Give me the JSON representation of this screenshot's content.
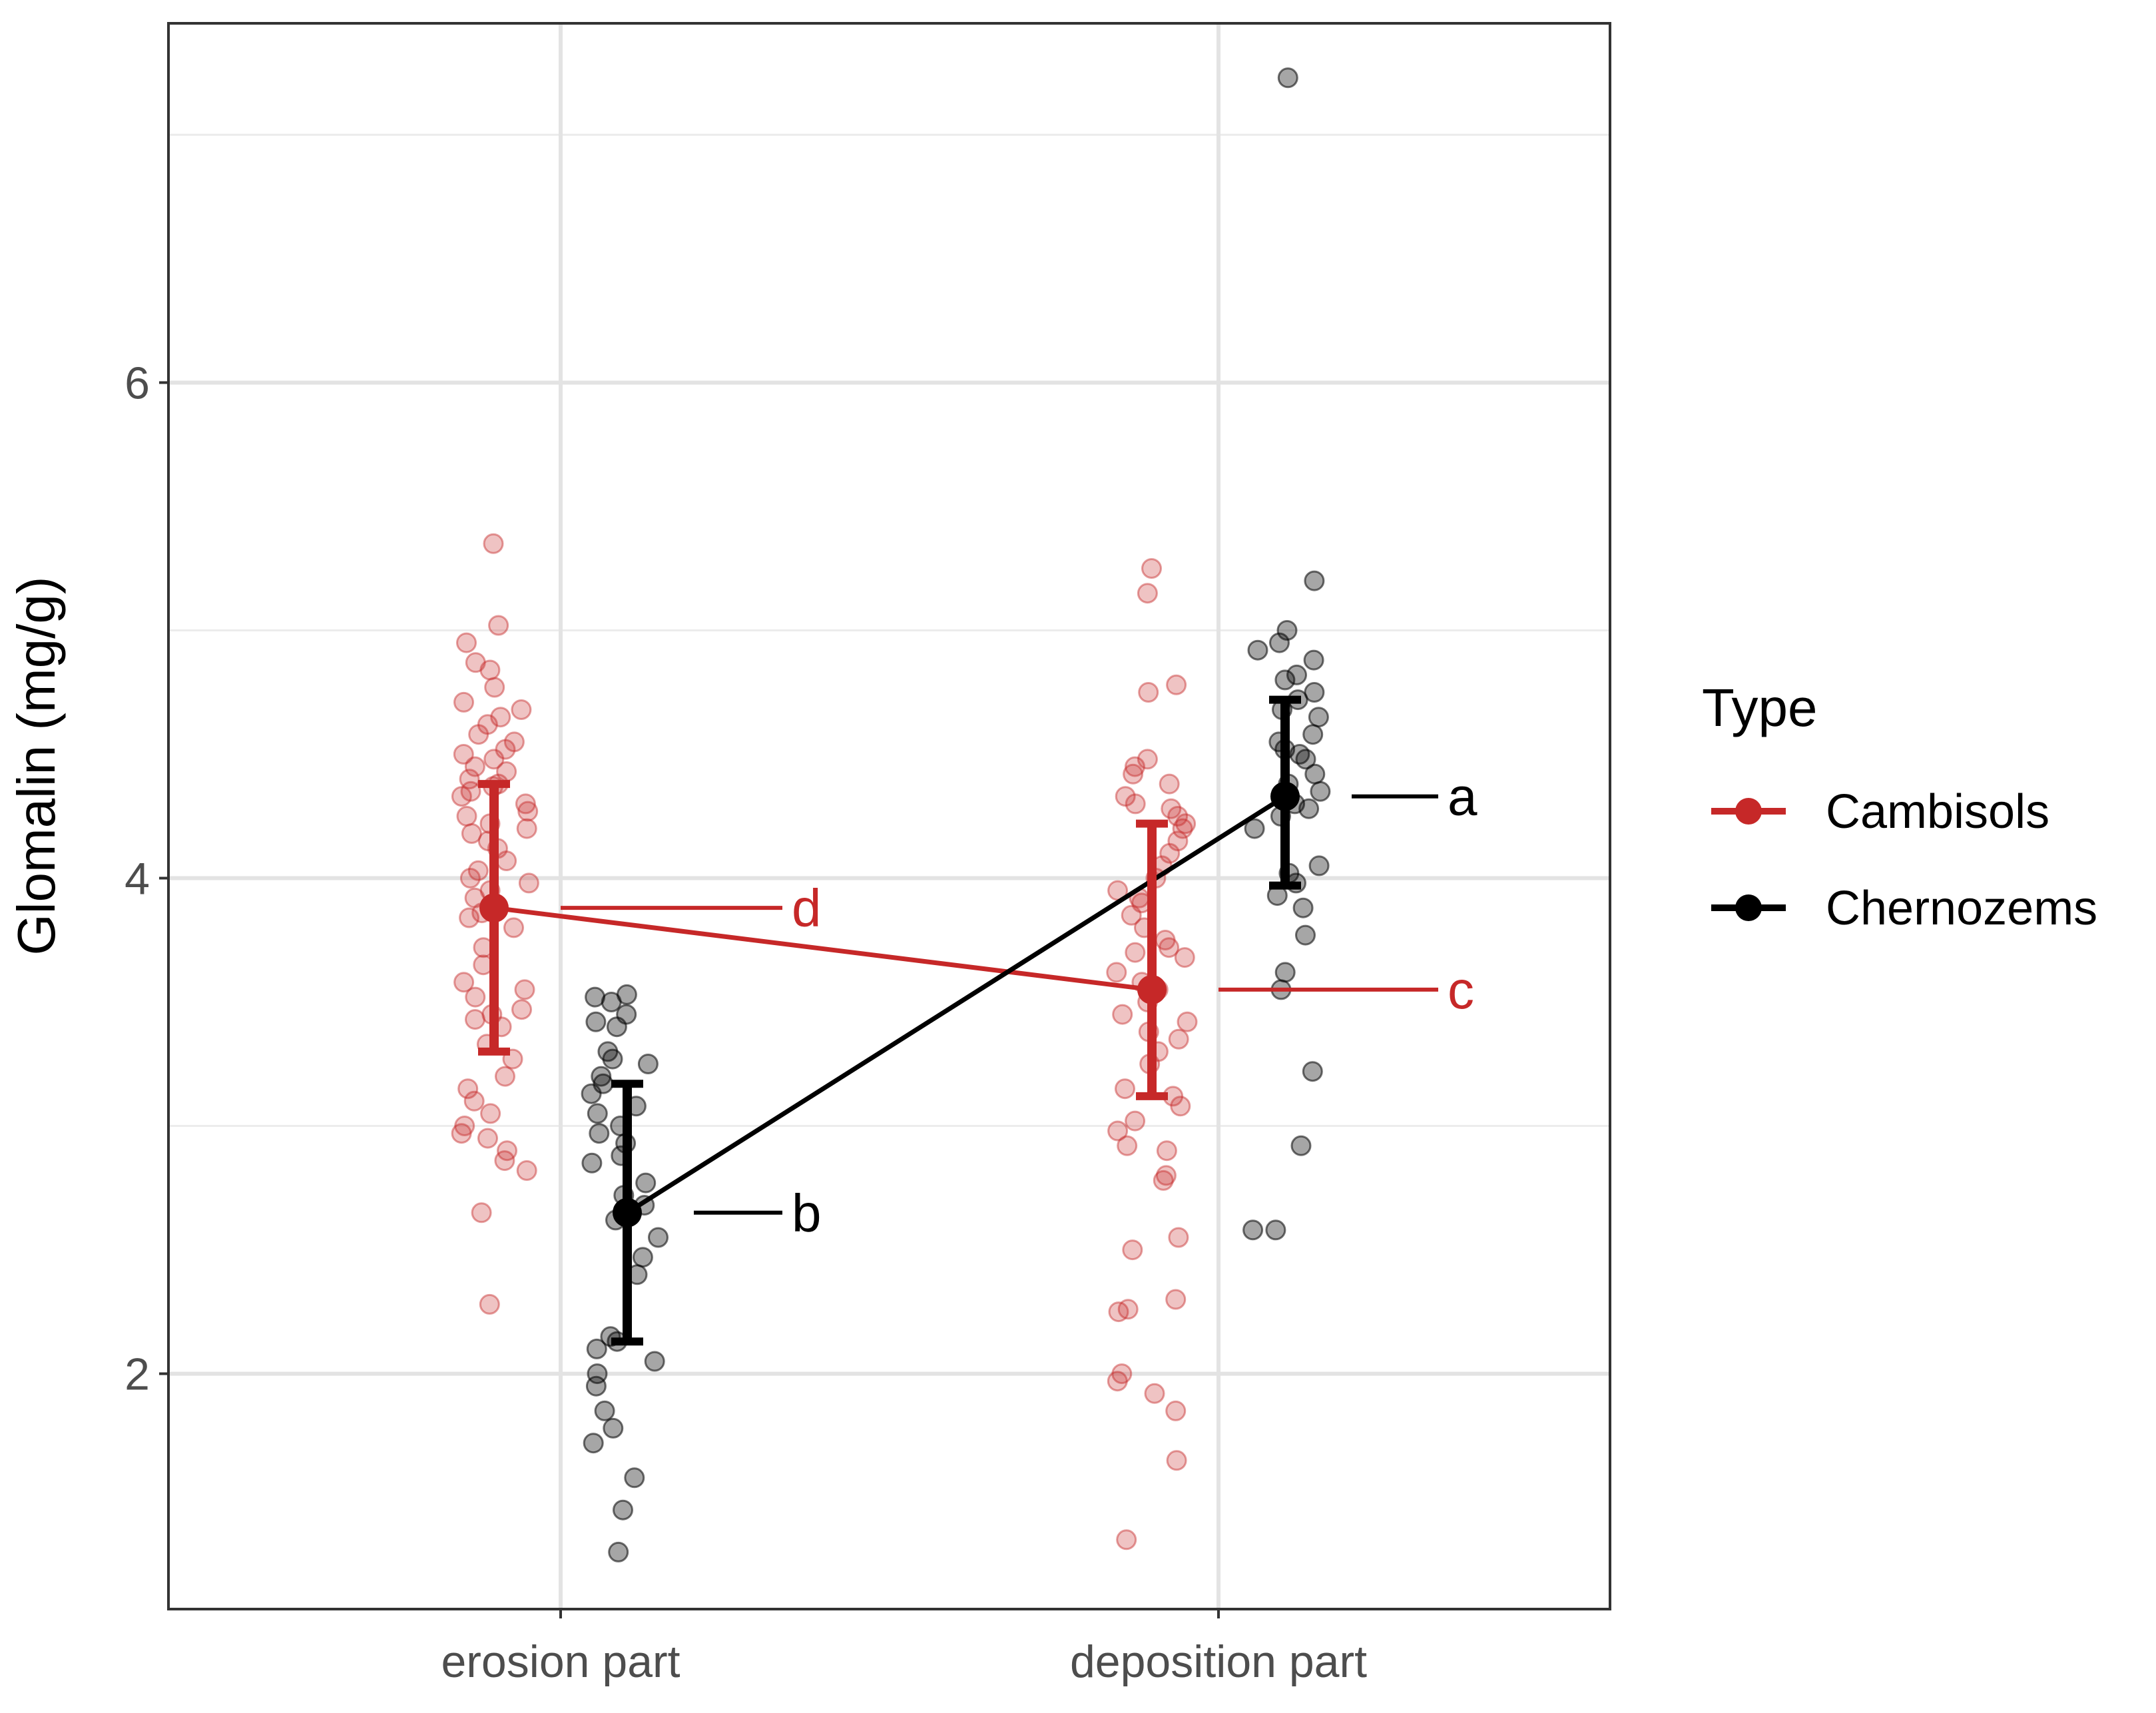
{
  "chart_data": {
    "type": "scatter",
    "title": "",
    "xlabel": "",
    "ylabel": "Glomalin (mg/g)",
    "categories": [
      "erosion part",
      "deposition part"
    ],
    "ylim": [
      1.05,
      7.45
    ],
    "yticks": [
      2,
      4,
      6
    ],
    "grid": true,
    "legend": {
      "title": "Type",
      "position": "right"
    },
    "colors": {
      "Cambisols": "#c62828",
      "Chernozems": "#000000"
    },
    "series": [
      {
        "name": "Cambisols",
        "color": "#c62828",
        "means": [
          3.88,
          3.55
        ],
        "ci_low": [
          3.3,
          3.12
        ],
        "ci_high": [
          4.38,
          4.22
        ],
        "letters": [
          "d",
          "c"
        ],
        "points": {
          "erosion part": [
            5.35,
            5.02,
            4.95,
            4.87,
            4.84,
            4.77,
            4.71,
            4.68,
            4.65,
            4.62,
            4.58,
            4.55,
            4.52,
            4.5,
            4.48,
            4.45,
            4.43,
            4.4,
            4.38,
            4.37,
            4.35,
            4.33,
            4.3,
            4.27,
            4.25,
            4.22,
            4.2,
            4.18,
            4.15,
            4.12,
            4.07,
            4.03,
            4.0,
            3.98,
            3.95,
            3.92,
            3.89,
            3.86,
            3.84,
            3.8,
            3.72,
            3.65,
            3.58,
            3.55,
            3.52,
            3.47,
            3.45,
            3.43,
            3.4,
            3.33,
            3.27,
            3.2,
            3.15,
            3.1,
            3.05,
            3.0,
            2.97,
            2.95,
            2.9,
            2.86,
            2.82,
            2.65,
            2.28
          ],
          "deposition part": [
            5.25,
            5.15,
            4.78,
            4.75,
            4.48,
            4.45,
            4.42,
            4.38,
            4.33,
            4.3,
            4.28,
            4.25,
            4.22,
            4.2,
            4.15,
            4.1,
            4.05,
            4.0,
            3.95,
            3.92,
            3.9,
            3.85,
            3.8,
            3.75,
            3.72,
            3.7,
            3.68,
            3.62,
            3.58,
            3.55,
            3.5,
            3.45,
            3.42,
            3.38,
            3.35,
            3.3,
            3.25,
            3.15,
            3.12,
            3.08,
            3.02,
            2.98,
            2.92,
            2.9,
            2.8,
            2.78,
            2.55,
            2.5,
            2.3,
            2.26,
            2.25,
            2.0,
            1.97,
            1.92,
            1.85,
            1.65,
            1.33
          ]
        }
      },
      {
        "name": "Chernozems",
        "color": "#000000",
        "means": [
          2.65,
          4.33
        ],
        "ci_low": [
          2.13,
          3.97
        ],
        "ci_high": [
          3.17,
          4.72
        ],
        "letters": [
          "b",
          "a"
        ],
        "points": {
          "erosion part": [
            3.53,
            3.52,
            3.5,
            3.45,
            3.42,
            3.4,
            3.3,
            3.27,
            3.25,
            3.2,
            3.17,
            3.13,
            3.08,
            3.05,
            3.0,
            2.97,
            2.93,
            2.88,
            2.85,
            2.77,
            2.72,
            2.68,
            2.62,
            2.55,
            2.47,
            2.4,
            2.15,
            2.13,
            2.1,
            2.05,
            2.0,
            1.95,
            1.85,
            1.78,
            1.72,
            1.58,
            1.45,
            1.28
          ],
          "deposition part": [
            7.23,
            5.2,
            5.0,
            4.95,
            4.92,
            4.88,
            4.82,
            4.8,
            4.75,
            4.72,
            4.68,
            4.65,
            4.58,
            4.55,
            4.52,
            4.5,
            4.48,
            4.42,
            4.38,
            4.35,
            4.3,
            4.28,
            4.25,
            4.2,
            4.05,
            4.02,
            3.98,
            3.93,
            3.88,
            3.77,
            3.62,
            3.55,
            3.22,
            2.92,
            2.58,
            2.58
          ]
        }
      }
    ]
  }
}
